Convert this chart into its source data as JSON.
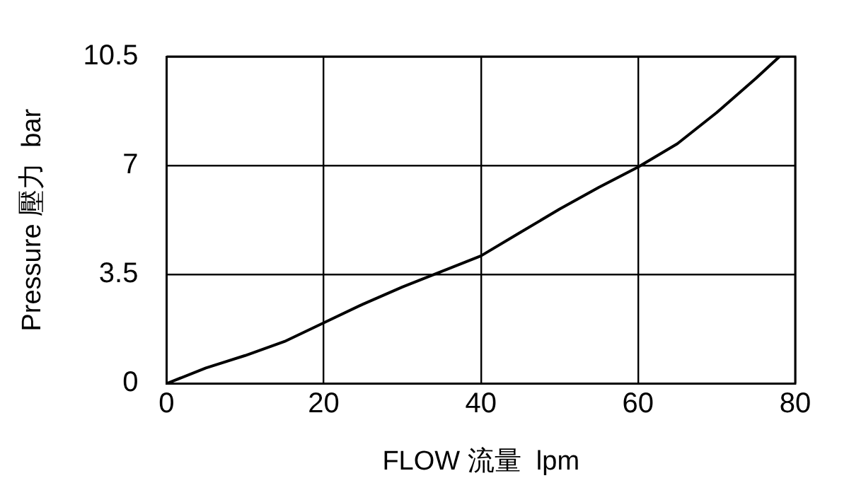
{
  "chart_data": {
    "type": "line",
    "xlabel": "FLOW 流量  lpm",
    "ylabel": "Pressure 壓力  bar",
    "x": [
      0,
      5,
      10,
      15,
      20,
      25,
      30,
      35,
      40,
      45,
      50,
      55,
      60,
      65,
      70,
      75,
      78
    ],
    "series": [
      {
        "color": "#000000",
        "values": [
          0,
          0.5,
          0.9,
          1.35,
          1.95,
          2.55,
          3.1,
          3.6,
          4.1,
          4.85,
          5.6,
          6.3,
          6.95,
          7.7,
          8.7,
          9.8,
          10.5
        ]
      }
    ],
    "xlim": [
      0,
      80
    ],
    "xticks": [
      0,
      20,
      40,
      60,
      80
    ],
    "ylim": [
      0,
      10.5
    ],
    "yticks": [
      0,
      3.5,
      7,
      10.5
    ],
    "grid": true,
    "legend": false,
    "marker": "none",
    "line_style": "solid"
  }
}
